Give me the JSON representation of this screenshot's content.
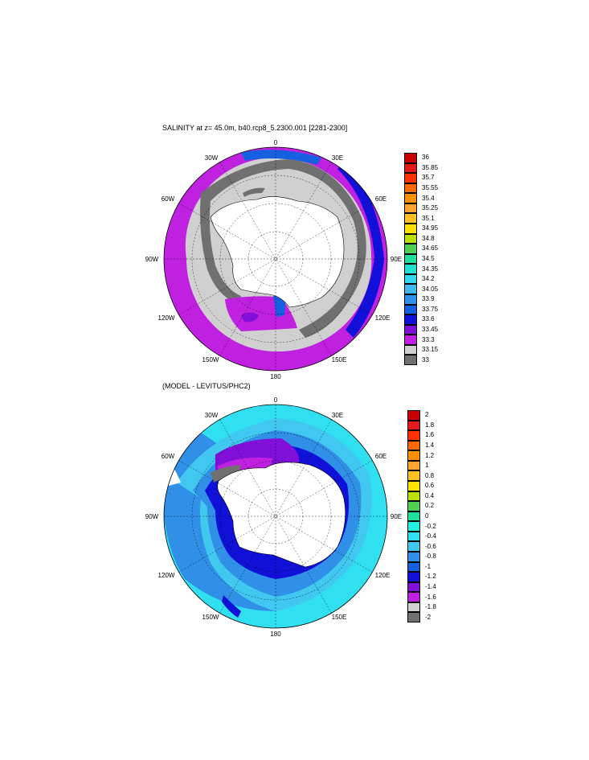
{
  "panel1": {
    "title": "SALINITY at z=  45.0m, b40.rcp8_5.2300.001 [2281-2300]",
    "lon_labels": [
      "0",
      "30E",
      "60E",
      "90E",
      "120E",
      "150E",
      "180",
      "150W",
      "120W",
      "90W",
      "60W",
      "30W"
    ],
    "colorbar": {
      "labels": [
        "36",
        "35.85",
        "35.7",
        "35.55",
        "35.4",
        "35.25",
        "35.1",
        "34.95",
        "34.8",
        "34.65",
        "34.5",
        "34.35",
        "34.2",
        "34.05",
        "33.9",
        "33.75",
        "33.6",
        "33.45",
        "33.3",
        "33.15",
        "33"
      ],
      "colors": [
        "#c80000",
        "#e31a1c",
        "#ff3000",
        "#ff6a00",
        "#ff9000",
        "#ffa530",
        "#ffc020",
        "#ffe000",
        "#b8e000",
        "#50d050",
        "#20e0a0",
        "#20e0d0",
        "#30d8f0",
        "#40b8f0",
        "#3090e8",
        "#1560e0",
        "#1010d8",
        "#8010d8",
        "#c020e0",
        "#d0d0d0",
        "#707070"
      ]
    }
  },
  "panel2": {
    "title": "(MODEL - LEVITUS/PHC2)",
    "lon_labels": [
      "0",
      "30E",
      "60E",
      "90E",
      "120E",
      "150E",
      "180",
      "150W",
      "120W",
      "90W",
      "60W",
      "30W"
    ],
    "colorbar": {
      "labels": [
        "2",
        "1.8",
        "1.6",
        "1.4",
        "1.2",
        "1",
        "0.8",
        "0.6",
        "0.4",
        "0.2",
        "0",
        "-0.2",
        "-0.4",
        "-0.6",
        "-0.8",
        "-1",
        "-1.2",
        "-1.4",
        "-1.6",
        "-1.8",
        "-2"
      ],
      "colors": [
        "#c80000",
        "#e31a1c",
        "#ff3000",
        "#ff6a00",
        "#ff9000",
        "#ffa530",
        "#ffc020",
        "#ffe000",
        "#b8e000",
        "#50d050",
        "#20e0a0",
        "#20f0e0",
        "#30e0f0",
        "#40c8f0",
        "#3090e8",
        "#1560e0",
        "#1010d8",
        "#8010d8",
        "#c020e0",
        "#d0d0d0",
        "#707070"
      ]
    }
  }
}
